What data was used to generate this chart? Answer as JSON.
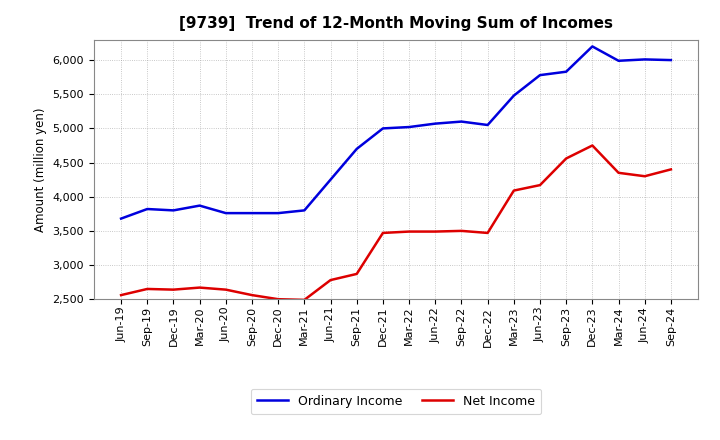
{
  "title": "[9739]  Trend of 12-Month Moving Sum of Incomes",
  "ylabel": "Amount (million yen)",
  "ylim": [
    2500,
    6300
  ],
  "yticks": [
    2500,
    3000,
    3500,
    4000,
    4500,
    5000,
    5500,
    6000
  ],
  "background_color": "#ffffff",
  "grid_color": "#999999",
  "x_labels": [
    "Jun-19",
    "Sep-19",
    "Dec-19",
    "Mar-20",
    "Jun-20",
    "Sep-20",
    "Dec-20",
    "Mar-21",
    "Jun-21",
    "Sep-21",
    "Dec-21",
    "Mar-22",
    "Jun-22",
    "Sep-22",
    "Dec-22",
    "Mar-23",
    "Jun-23",
    "Sep-23",
    "Dec-23",
    "Mar-24",
    "Jun-24",
    "Sep-24"
  ],
  "ordinary_income": [
    3680,
    3820,
    3800,
    3870,
    3760,
    3760,
    3760,
    3800,
    4250,
    4700,
    5000,
    5020,
    5070,
    5100,
    5050,
    5480,
    5780,
    5830,
    6200,
    5990,
    6010,
    6000
  ],
  "net_income": [
    2560,
    2650,
    2640,
    2670,
    2640,
    2560,
    2500,
    2490,
    2780,
    2870,
    3470,
    3490,
    3490,
    3500,
    3470,
    4090,
    4170,
    4560,
    4750,
    4350,
    4300,
    4400
  ],
  "ordinary_color": "#0000dd",
  "net_color": "#dd0000",
  "line_width": 1.8,
  "title_fontsize": 11,
  "label_fontsize": 8.5,
  "tick_fontsize": 8,
  "legend_fontsize": 9
}
